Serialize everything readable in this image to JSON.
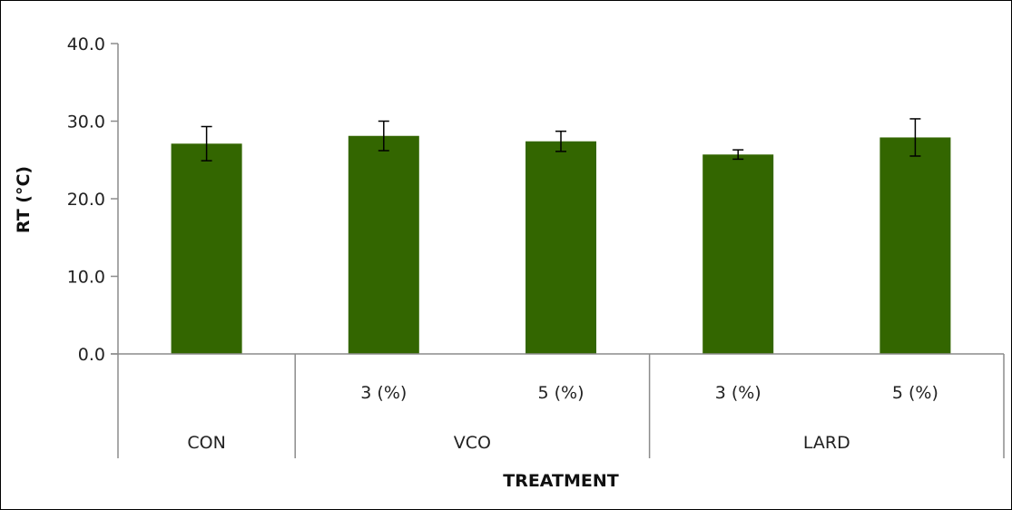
{
  "chart_data": {
    "type": "bar",
    "xlabel": "TREATMENT",
    "ylabel": "RT (°C)",
    "ylim": [
      0,
      40
    ],
    "yticks": [
      "0.0",
      "10.0",
      "20.0",
      "30.0",
      "40.0"
    ],
    "categories": [
      {
        "group": "CON",
        "sub": "",
        "value": 27.1,
        "error": 2.2
      },
      {
        "group": "VCO",
        "sub": "3 (%)",
        "value": 28.1,
        "error": 1.9
      },
      {
        "group": "VCO",
        "sub": "5 (%)",
        "value": 27.4,
        "error": 1.3
      },
      {
        "group": "LARD",
        "sub": "3 (%)",
        "value": 25.7,
        "error": 0.6
      },
      {
        "group": "LARD",
        "sub": "5 (%)",
        "value": 27.9,
        "error": 2.4
      }
    ],
    "groups": [
      "CON",
      "VCO",
      "LARD"
    ],
    "bar_color": "#336600",
    "grid": false,
    "legend": "none"
  }
}
